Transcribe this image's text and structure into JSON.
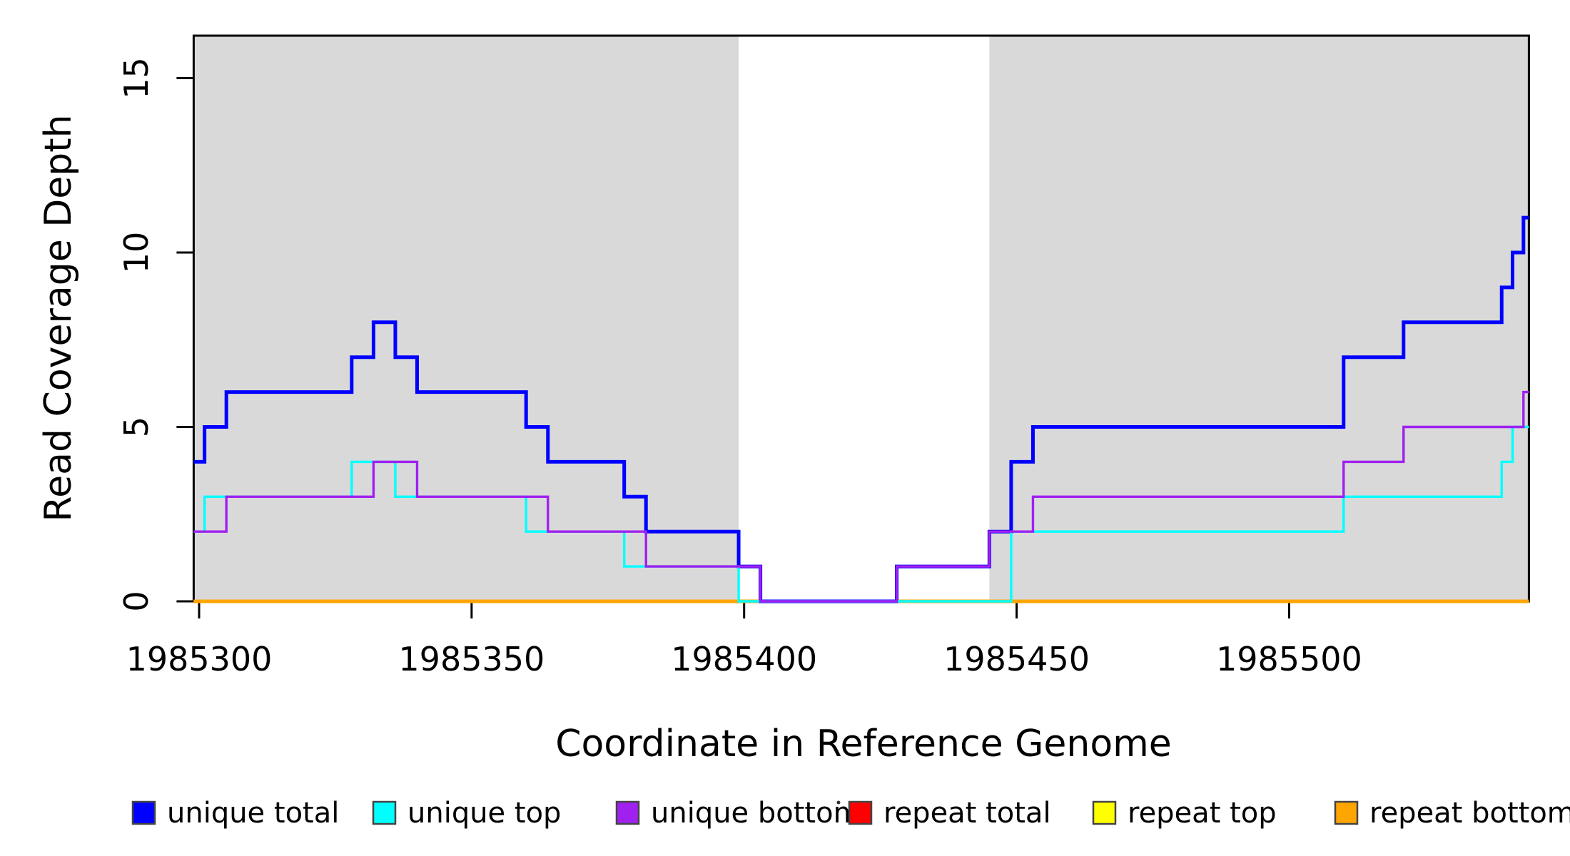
{
  "figure": {
    "background": "#FFFFFF"
  },
  "chart_data": {
    "type": "line",
    "style": "step-after",
    "title": "",
    "xlabel": "Coordinate in Reference Genome",
    "ylabel": "Read Coverage Depth",
    "xlim": [
      1985299,
      1985544
    ],
    "ylim": [
      0,
      16.2
    ],
    "x_ticks": [
      1985300,
      1985350,
      1985400,
      1985450,
      1985500
    ],
    "y_ticks": [
      0,
      5,
      10,
      15
    ],
    "grid": false,
    "legend_position": "bottom",
    "shaded_regions": {
      "color": "#D9D9D9",
      "intervals": [
        [
          1985299,
          1985399
        ],
        [
          1985445,
          1985544
        ]
      ]
    },
    "x_end": 1985544,
    "series": [
      {
        "name": "repeat total",
        "color": "#FF0000",
        "points": [
          [
            1985299,
            0
          ]
        ]
      },
      {
        "name": "repeat top",
        "color": "#FFFF00",
        "points": [
          [
            1985299,
            0
          ]
        ]
      },
      {
        "name": "repeat bottom",
        "color": "#FFA500",
        "points": [
          [
            1985299,
            0
          ]
        ]
      },
      {
        "name": "unique total",
        "color": "#0000FF",
        "points": [
          [
            1985299,
            4
          ],
          [
            1985301,
            5
          ],
          [
            1985305,
            6
          ],
          [
            1985328,
            7
          ],
          [
            1985332,
            8
          ],
          [
            1985336,
            7
          ],
          [
            1985340,
            6
          ],
          [
            1985360,
            5
          ],
          [
            1985364,
            4
          ],
          [
            1985378,
            3
          ],
          [
            1985382,
            2
          ],
          [
            1985399,
            1
          ],
          [
            1985403,
            0
          ],
          [
            1985428,
            1
          ],
          [
            1985445,
            2
          ],
          [
            1985449,
            4
          ],
          [
            1985453,
            5
          ],
          [
            1985510,
            7
          ],
          [
            1985521,
            8
          ],
          [
            1985539,
            9
          ],
          [
            1985541,
            10
          ],
          [
            1985543,
            11
          ]
        ]
      },
      {
        "name": "unique top",
        "color": "#00FFFF",
        "points": [
          [
            1985299,
            2
          ],
          [
            1985301,
            3
          ],
          [
            1985328,
            4
          ],
          [
            1985336,
            3
          ],
          [
            1985360,
            2
          ],
          [
            1985378,
            1
          ],
          [
            1985399,
            0
          ],
          [
            1985449,
            2
          ],
          [
            1985510,
            3
          ],
          [
            1985539,
            4
          ],
          [
            1985541,
            5
          ]
        ]
      },
      {
        "name": "unique bottom",
        "color": "#A020F0",
        "points": [
          [
            1985299,
            2
          ],
          [
            1985305,
            3
          ],
          [
            1985332,
            4
          ],
          [
            1985340,
            3
          ],
          [
            1985364,
            2
          ],
          [
            1985382,
            1
          ],
          [
            1985403,
            0
          ],
          [
            1985428,
            1
          ],
          [
            1985445,
            2
          ],
          [
            1985453,
            3
          ],
          [
            1985510,
            4
          ],
          [
            1985521,
            5
          ],
          [
            1985543,
            6
          ]
        ]
      }
    ],
    "legend": {
      "entries": [
        {
          "label": "unique total",
          "color": "#0000FF"
        },
        {
          "label": "unique top",
          "color": "#00FFFF"
        },
        {
          "label": "unique bottom",
          "color": "#A020F0"
        },
        {
          "label": "repeat total",
          "color": "#FF0000"
        },
        {
          "label": "repeat top",
          "color": "#FFFF00"
        },
        {
          "label": "repeat bottom",
          "color": "#FFA500"
        }
      ]
    }
  }
}
